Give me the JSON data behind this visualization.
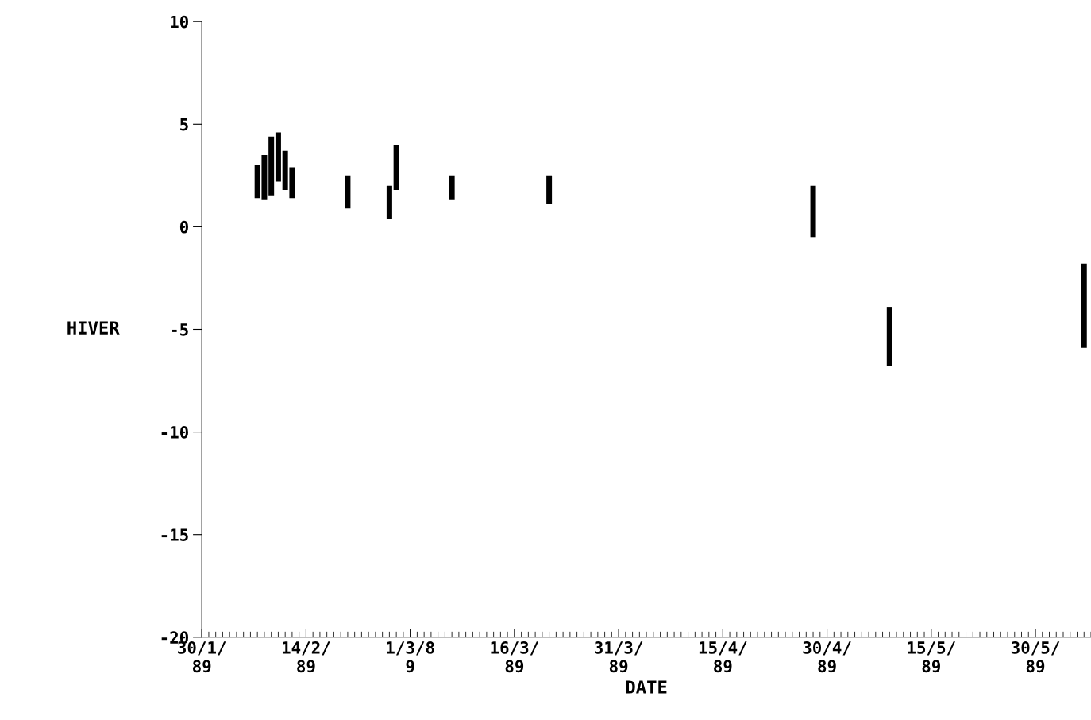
{
  "chart_data": {
    "type": "bar",
    "xlabel": "DATE",
    "ylabel": "HIVER",
    "x": [
      "1989-02-07",
      "1989-02-08",
      "1989-02-09",
      "1989-02-10",
      "1989-02-11",
      "1989-02-12",
      "1989-02-20",
      "1989-02-26",
      "1989-02-27",
      "1989-03-07",
      "1989-03-21",
      "1989-04-28",
      "1989-05-09",
      "1989-06-06"
    ],
    "base": [
      1.4,
      1.3,
      1.5,
      2.2,
      1.8,
      1.4,
      0.9,
      0.4,
      1.8,
      1.3,
      1.1,
      -0.5,
      -6.8,
      -5.9
    ],
    "values": [
      1.6,
      2.2,
      2.9,
      2.4,
      1.9,
      1.5,
      1.6,
      1.6,
      2.2,
      1.2,
      1.4,
      2.5,
      2.9,
      4.1
    ],
    "color": "#000000",
    "xlim": [
      "1989-01-30",
      "1989-06-07"
    ],
    "xticks": [
      {
        "value": "1989-01-30",
        "label": "30/1/\n89"
      },
      {
        "value": "1989-02-14",
        "label": "14/2/\n89"
      },
      {
        "value": "1989-03-01",
        "label": "1/3/8\n9"
      },
      {
        "value": "1989-03-16",
        "label": "16/3/\n89"
      },
      {
        "value": "1989-03-31",
        "label": "31/3/\n89"
      },
      {
        "value": "1989-04-15",
        "label": "15/4/\n89"
      },
      {
        "value": "1989-04-30",
        "label": "30/4/\n89"
      },
      {
        "value": "1989-05-15",
        "label": "15/5/\n89"
      },
      {
        "value": "1989-05-30",
        "label": "30/5/\n89"
      }
    ],
    "ylim": [
      -20,
      10
    ],
    "yticks": [
      -20,
      -15,
      -10,
      -5,
      0,
      5,
      10
    ],
    "grid": false
  }
}
